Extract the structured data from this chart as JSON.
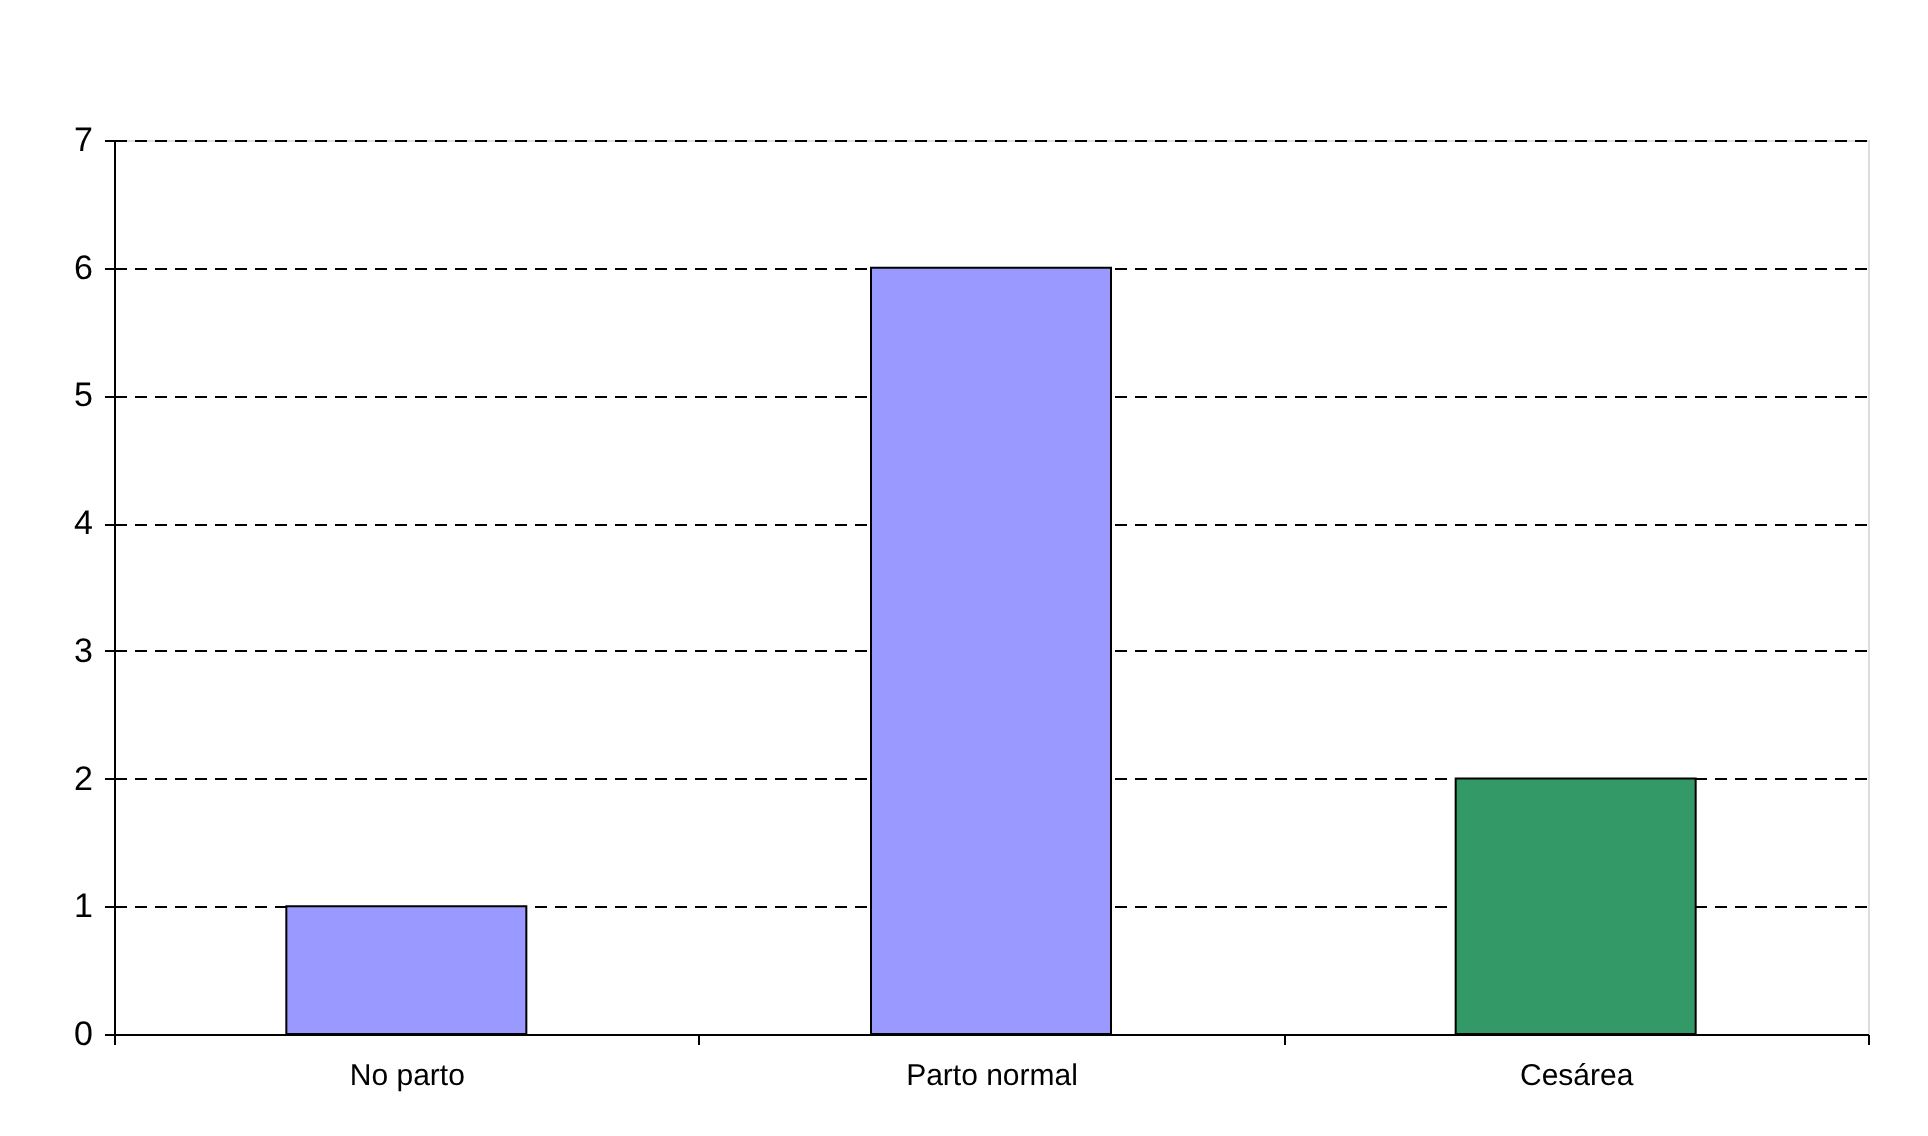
{
  "chart_data": {
    "type": "bar",
    "categories": [
      "No parto",
      "Parto normal",
      "Cesárea"
    ],
    "values": [
      1,
      6,
      2
    ],
    "colors": [
      "#9999ff",
      "#9999ff",
      "#339966"
    ],
    "ylim": [
      0,
      7
    ],
    "yticks": [
      0,
      1,
      2,
      3,
      4,
      5,
      6,
      7
    ],
    "grid": "y"
  }
}
